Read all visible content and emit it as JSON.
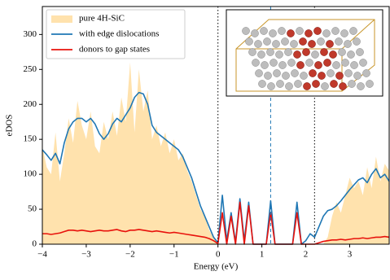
{
  "chart_data": {
    "type": "line",
    "xlabel": "Energy (eV)",
    "ylabel": "eDOS",
    "xlim": [
      -4,
      3.9
    ],
    "ylim": [
      0,
      340
    ],
    "xticks": [
      {
        "value": -4,
        "label": "−4"
      },
      {
        "value": -3,
        "label": "−3"
      },
      {
        "value": -2,
        "label": "−2"
      },
      {
        "value": -1,
        "label": "−1"
      },
      0,
      1,
      2,
      3
    ],
    "yticks": [
      0,
      50,
      100,
      150,
      200,
      250,
      300
    ],
    "legend": "upper left",
    "x": [
      -4.0,
      -3.9,
      -3.8,
      -3.7,
      -3.6,
      -3.5,
      -3.4,
      -3.3,
      -3.2,
      -3.1,
      -3.0,
      -2.9,
      -2.8,
      -2.7,
      -2.6,
      -2.5,
      -2.4,
      -2.3,
      -2.2,
      -2.1,
      -2.0,
      -1.9,
      -1.8,
      -1.7,
      -1.6,
      -1.5,
      -1.4,
      -1.3,
      -1.2,
      -1.1,
      -1.0,
      -0.9,
      -0.8,
      -0.7,
      -0.6,
      -0.5,
      -0.4,
      -0.3,
      -0.2,
      -0.1,
      0.0,
      0.1,
      0.2,
      0.3,
      0.4,
      0.5,
      0.6,
      0.7,
      0.8,
      0.9,
      1.0,
      1.1,
      1.2,
      1.3,
      1.4,
      1.5,
      1.6,
      1.7,
      1.8,
      1.9,
      2.0,
      2.1,
      2.2,
      2.3,
      2.4,
      2.5,
      2.6,
      2.7,
      2.8,
      2.9,
      3.0,
      3.1,
      3.2,
      3.3,
      3.4,
      3.5,
      3.6,
      3.7,
      3.8,
      3.9
    ],
    "series": [
      {
        "name": "pure 4H-SiC",
        "style": "area",
        "color": "#ffe2ad",
        "values": [
          140,
          110,
          100,
          160,
          90,
          130,
          180,
          145,
          205,
          170,
          150,
          190,
          140,
          130,
          175,
          150,
          190,
          155,
          210,
          175,
          260,
          160,
          250,
          190,
          220,
          150,
          170,
          140,
          160,
          130,
          150,
          120,
          130,
          105,
          90,
          70,
          50,
          40,
          20,
          10,
          0,
          0,
          0,
          0,
          0,
          0,
          0,
          0,
          0,
          0,
          0,
          0,
          0,
          0,
          0,
          0,
          0,
          0,
          0,
          0,
          0,
          0,
          0,
          0,
          0,
          10,
          40,
          60,
          45,
          70,
          95,
          80,
          90,
          70,
          110,
          80,
          125,
          90,
          115,
          105
        ]
      },
      {
        "name": "with edge dislocations",
        "style": "line",
        "color": "#1f77b4",
        "values": [
          135,
          128,
          120,
          130,
          115,
          145,
          165,
          175,
          180,
          180,
          175,
          180,
          172,
          158,
          150,
          158,
          172,
          180,
          175,
          185,
          195,
          210,
          217,
          215,
          200,
          170,
          160,
          155,
          150,
          145,
          140,
          135,
          125,
          110,
          95,
          75,
          55,
          40,
          25,
          10,
          2,
          70,
          5,
          45,
          3,
          65,
          5,
          60,
          0,
          0,
          0,
          0,
          62,
          0,
          0,
          0,
          0,
          0,
          60,
          0,
          5,
          15,
          10,
          25,
          40,
          48,
          50,
          55,
          62,
          70,
          78,
          85,
          92,
          95,
          88,
          100,
          108,
          95,
          100,
          90
        ]
      },
      {
        "name": "donors to gap states",
        "style": "line",
        "color": "#e8120c",
        "values": [
          15,
          15,
          14,
          15,
          16,
          18,
          20,
          20,
          19,
          20,
          19,
          18,
          19,
          20,
          19,
          19,
          20,
          21,
          19,
          18,
          20,
          20,
          21,
          20,
          19,
          18,
          19,
          18,
          17,
          16,
          17,
          16,
          15,
          14,
          13,
          12,
          11,
          10,
          8,
          5,
          1,
          45,
          0,
          40,
          0,
          60,
          0,
          55,
          0,
          0,
          0,
          0,
          45,
          0,
          0,
          0,
          0,
          0,
          45,
          0,
          0,
          0,
          0,
          2,
          4,
          5,
          6,
          6,
          7,
          6,
          7,
          8,
          8,
          9,
          8,
          9,
          10,
          10,
          11,
          10
        ]
      }
    ],
    "vlines": [
      {
        "x": 0,
        "color": "#000000",
        "dash": "dotted"
      },
      {
        "x": 1.2,
        "color": "#1f77b4",
        "dash": "dashed"
      },
      {
        "x": 2.2,
        "color": "#000000",
        "dash": "dotted"
      }
    ]
  }
}
